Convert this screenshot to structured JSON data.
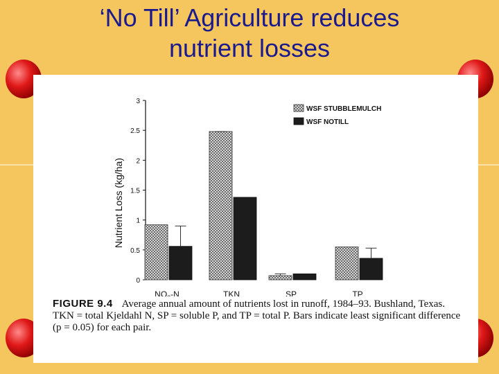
{
  "slide": {
    "title_line1": "‘No Till’ Agriculture reduces",
    "title_line2": "nutrient losses"
  },
  "caption": {
    "figure_label": "FIGURE 9.4",
    "text": "Average annual amount of nutrients lost in runoff, 1984–93. Bushland, Texas. TKN = total Kjeldahl N, SP = soluble P, and TP = total P. Bars indicate least significant difference (p = 0.05) for each pair."
  },
  "colors": {
    "background": "#f6c65e",
    "title": "#1a1a8c",
    "deco_red": "#e01818",
    "stubblemulch_fill": "#c9c9c9",
    "notill_fill": "#1c1c1c"
  },
  "chart_data": {
    "type": "bar",
    "title": "",
    "xlabel": "",
    "ylabel": "Nutrient Loss (kg/ha)",
    "ylim": [
      0,
      3
    ],
    "yticks": [
      "0",
      "0.5",
      "1",
      "1.5",
      "2",
      "2.5",
      "3"
    ],
    "categories": [
      "NO3-N",
      "TKN",
      "SP",
      "TP"
    ],
    "category_labels": [
      {
        "main": "NO",
        "sub": "3",
        "rest": "-N"
      },
      {
        "main": "TKN",
        "sub": "",
        "rest": ""
      },
      {
        "main": "SP",
        "sub": "",
        "rest": ""
      },
      {
        "main": "TP",
        "sub": "",
        "rest": ""
      }
    ],
    "series": [
      {
        "name": "WSF STUBBLEMULCH",
        "values": [
          0.92,
          2.48,
          0.07,
          0.55
        ],
        "lsd_top": [
          null,
          2.48,
          0.1,
          null
        ]
      },
      {
        "name": "WSF NOTILL",
        "values": [
          0.56,
          1.38,
          0.1,
          0.36
        ],
        "lsd_top": [
          0.9,
          null,
          null,
          0.53
        ]
      }
    ],
    "legend": "top-right",
    "grid": false
  }
}
